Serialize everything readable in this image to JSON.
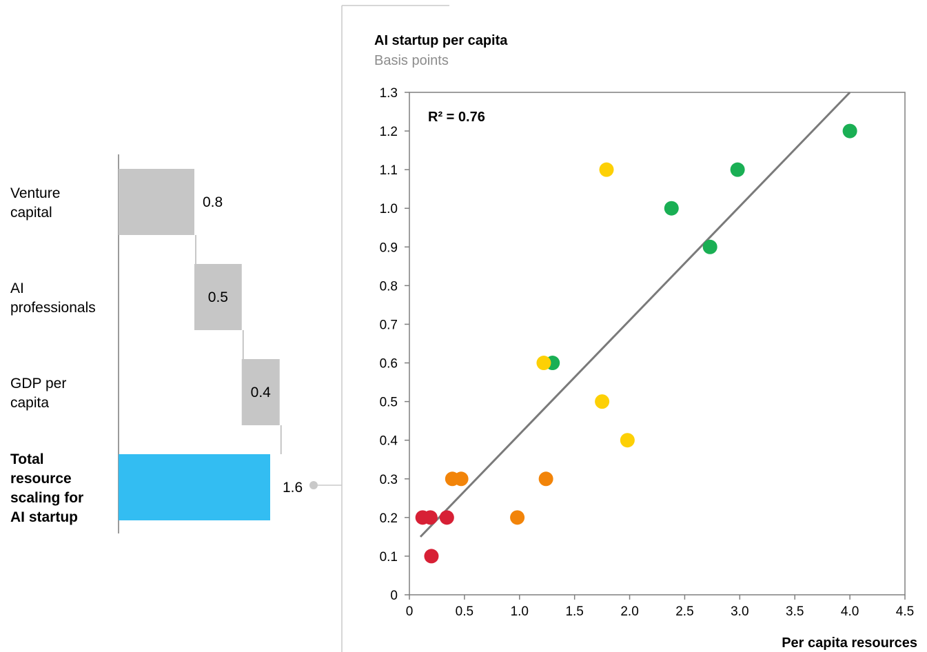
{
  "chart_data": [
    {
      "type": "bar",
      "orientation": "horizontal-waterfall",
      "categories": [
        "Venture capital",
        "AI professionals",
        "GDP per capita",
        "Total resource scaling for AI startup"
      ],
      "category_lines": [
        [
          "Venture",
          "capital"
        ],
        [
          "AI",
          "professionals"
        ],
        [
          "GDP per",
          "capita"
        ],
        [
          "Total",
          "resource",
          "scaling for",
          "AI startup"
        ]
      ],
      "values": [
        0.8,
        0.5,
        0.4,
        1.6
      ],
      "value_labels": [
        "0.8",
        "0.5",
        "0.4",
        "1.6"
      ],
      "total_index": 3,
      "colors": {
        "component": "#c6c6c6",
        "total": "#33bdf2",
        "axis": "#7a7a7a"
      }
    },
    {
      "type": "scatter",
      "title": "AI startup per capita",
      "subtitle": "Basis points",
      "xlabel": "Per capita resources",
      "xlim": [
        0,
        4.5
      ],
      "ylim": [
        0,
        1.3
      ],
      "x_ticks": [
        "0",
        "0.5",
        "1.0",
        "1.5",
        "2.0",
        "2.5",
        "3.0",
        "3.5",
        "4.0",
        "4.5"
      ],
      "y_ticks": [
        "0",
        "0.1",
        "0.2",
        "0.3",
        "0.4",
        "0.5",
        "0.6",
        "0.7",
        "0.8",
        "0.9",
        "1.0",
        "1.1",
        "1.2",
        "1.3"
      ],
      "annotation": "R² = 0.76",
      "trendline": {
        "x": [
          0.1,
          4.0
        ],
        "y": [
          0.15,
          1.3
        ],
        "color": "#7a7a7a"
      },
      "colors": {
        "green": "#1aaf54",
        "yellow": "#fdd005",
        "orange": "#f28409",
        "red": "#d72035"
      },
      "series": [
        {
          "color_key": "green",
          "points": [
            [
              4.0,
              1.2
            ],
            [
              2.98,
              1.1
            ],
            [
              2.38,
              1.0
            ],
            [
              2.73,
              0.9
            ],
            [
              1.3,
              0.6
            ]
          ]
        },
        {
          "color_key": "yellow",
          "points": [
            [
              1.79,
              1.1
            ],
            [
              1.22,
              0.6
            ],
            [
              1.75,
              0.5
            ],
            [
              1.98,
              0.4
            ]
          ]
        },
        {
          "color_key": "orange",
          "points": [
            [
              0.39,
              0.3
            ],
            [
              0.47,
              0.3
            ],
            [
              1.24,
              0.3
            ],
            [
              0.98,
              0.2
            ]
          ]
        },
        {
          "color_key": "red",
          "points": [
            [
              0.12,
              0.2
            ],
            [
              0.19,
              0.2
            ],
            [
              0.34,
              0.2
            ],
            [
              0.2,
              0.1
            ]
          ]
        }
      ]
    }
  ]
}
